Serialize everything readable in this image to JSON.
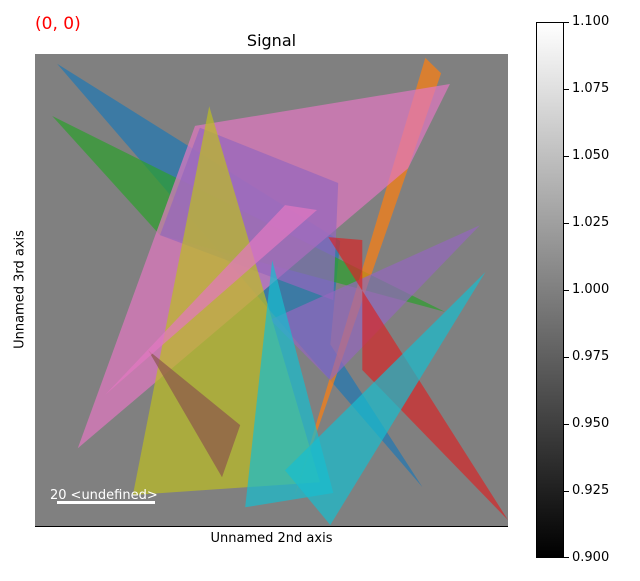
{
  "coordinate_label": "(0, 0)",
  "chart_data": {
    "type": "heatmap",
    "title": "Signal",
    "xlabel": "Unnamed 2nd axis",
    "ylabel": "Unnamed 3rd axis",
    "background_value": 1.0,
    "background_color": "#808080",
    "extent": [
      0,
      96.1
    ],
    "scalebar": {
      "value": "20",
      "units": "<undefined>",
      "length": 20
    },
    "colorbar": {
      "colormap": "gray",
      "min": 0.9,
      "max": 1.1,
      "ticks": [
        "0.900",
        "0.925",
        "0.950",
        "0.975",
        "1.000",
        "1.025",
        "1.050",
        "1.075",
        "1.100"
      ]
    },
    "polygons": [
      {
        "color": "#1f77b4",
        "points": [
          [
            4.5,
            2
          ],
          [
            62,
            38
          ],
          [
            60,
            59
          ],
          [
            78.7,
            88
          ]
        ]
      },
      {
        "color": "#2ca02c",
        "points": [
          [
            3.5,
            12.6
          ],
          [
            83.3,
            52.4
          ],
          [
            25.4,
            36.8
          ]
        ]
      },
      {
        "color": "#ff7f0e",
        "points": [
          [
            79.3,
            0.8
          ],
          [
            82.5,
            3.9
          ],
          [
            52.8,
            89.6
          ]
        ]
      },
      {
        "color": "#e377c2",
        "points": [
          [
            32.5,
            14.6
          ],
          [
            84.3,
            6.1
          ],
          [
            75.8,
            23.2
          ],
          [
            8.7,
            80.1
          ]
        ]
      },
      {
        "color": "#9467bd",
        "points": [
          [
            33.5,
            15
          ],
          [
            61.6,
            26.2
          ],
          [
            60.6,
            50
          ],
          [
            25.4,
            36.8
          ]
        ]
      },
      {
        "color": "#9467bd",
        "points": [
          [
            90.4,
            34.8
          ],
          [
            47.8,
            54
          ],
          [
            60,
            66.3
          ]
        ]
      },
      {
        "color": "#bcbd22",
        "points": [
          [
            35.4,
            10.6
          ],
          [
            19.9,
            89.6
          ],
          [
            57.9,
            87
          ]
        ]
      },
      {
        "color": "#8c564b",
        "points": [
          [
            23,
            60.2
          ],
          [
            41.7,
            75.4
          ],
          [
            38,
            86
          ]
        ]
      },
      {
        "color": "#d62728",
        "points": [
          [
            59.6,
            37.2
          ],
          [
            66.5,
            37.8
          ],
          [
            66.5,
            64.2
          ],
          [
            96.1,
            94.7
          ]
        ]
      },
      {
        "color": "#17becf",
        "points": [
          [
            48.2,
            41.9
          ],
          [
            42.7,
            92.1
          ],
          [
            60.6,
            89.2
          ]
        ]
      },
      {
        "color": "#17becf",
        "points": [
          [
            91.5,
            44.3
          ],
          [
            60,
            95.7
          ],
          [
            50.8,
            84.6
          ]
        ]
      },
      {
        "color": "#e377c2",
        "points": [
          [
            50.8,
            30.7
          ],
          [
            57.3,
            31.7
          ],
          [
            14.2,
            69.3
          ]
        ]
      }
    ]
  }
}
